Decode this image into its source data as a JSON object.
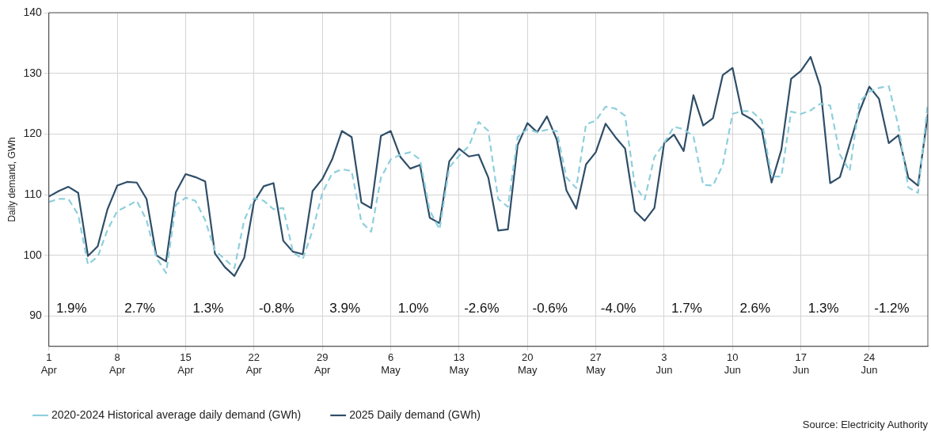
{
  "chart_data": {
    "type": "line",
    "ylabel": "Daily demand, GWh",
    "xlim": [
      "--04-01",
      "--06-30"
    ],
    "ylim": [
      85,
      140
    ],
    "yticks": [
      90,
      100,
      110,
      120,
      130,
      140
    ],
    "xticks": [
      {
        "value": "--04-01",
        "label": "1 Apr"
      },
      {
        "value": "--04-08",
        "label": "8 Apr"
      },
      {
        "value": "--04-15",
        "label": "15 Apr"
      },
      {
        "value": "--04-22",
        "label": "22 Apr"
      },
      {
        "value": "--04-29",
        "label": "29 Apr"
      },
      {
        "value": "--05-06",
        "label": "6 May"
      },
      {
        "value": "--05-13",
        "label": "13 May"
      },
      {
        "value": "--05-20",
        "label": "20 May"
      },
      {
        "value": "--05-27",
        "label": "27 May"
      },
      {
        "value": "--06-03",
        "label": "3 Jun"
      },
      {
        "value": "--06-10",
        "label": "10 Jun"
      },
      {
        "value": "--06-17",
        "label": "17 Jun"
      },
      {
        "value": "--06-24",
        "label": "24 Jun"
      }
    ],
    "grid": true,
    "legend": "bottom",
    "marker": "none",
    "x": [
      "--04-01",
      "--04-02",
      "--04-03",
      "--04-04",
      "--04-05",
      "--04-06",
      "--04-07",
      "--04-08",
      "--04-09",
      "--04-10",
      "--04-11",
      "--04-12",
      "--04-13",
      "--04-14",
      "--04-15",
      "--04-16",
      "--04-17",
      "--04-18",
      "--04-19",
      "--04-20",
      "--04-21",
      "--04-22",
      "--04-23",
      "--04-24",
      "--04-25",
      "--04-26",
      "--04-27",
      "--04-28",
      "--04-29",
      "--04-30",
      "--05-01",
      "--05-02",
      "--05-03",
      "--05-04",
      "--05-05",
      "--05-06",
      "--05-07",
      "--05-08",
      "--05-09",
      "--05-10",
      "--05-11",
      "--05-12",
      "--05-13",
      "--05-14",
      "--05-15",
      "--05-16",
      "--05-17",
      "--05-18",
      "--05-19",
      "--05-20",
      "--05-21",
      "--05-22",
      "--05-23",
      "--05-24",
      "--05-25",
      "--05-26",
      "--05-27",
      "--05-28",
      "--05-29",
      "--05-30",
      "--05-31",
      "--06-01",
      "--06-02",
      "--06-03",
      "--06-04",
      "--06-05",
      "--06-06",
      "--06-07",
      "--06-08",
      "--06-09",
      "--06-10",
      "--06-11",
      "--06-12",
      "--06-13",
      "--06-14",
      "--06-15",
      "--06-16",
      "--06-17",
      "--06-18",
      "--06-19",
      "--06-20",
      "--06-21",
      "--06-22",
      "--06-23",
      "--06-24",
      "--06-25",
      "--06-26",
      "--06-27",
      "--06-28",
      "--06-29",
      "--06-30"
    ],
    "series": [
      {
        "name": "2020-2024 Historical average daily demand (GWh)",
        "color": "#8ecfdc",
        "line_style": "dashed",
        "values": [
          108.8,
          109.3,
          109.3,
          106.7,
          98.5,
          99.8,
          104.2,
          107.3,
          108.1,
          109.0,
          105.8,
          99.6,
          97.1,
          108.3,
          109.5,
          109.0,
          105.8,
          100.8,
          99.4,
          97.9,
          105.8,
          109.4,
          109.0,
          107.6,
          107.8,
          100.5,
          99.4,
          104.1,
          110.3,
          113.5,
          114.2,
          113.9,
          105.5,
          103.9,
          112.8,
          115.8,
          116.6,
          117.0,
          115.8,
          107.4,
          104.3,
          114.5,
          116.4,
          118.0,
          122.0,
          120.5,
          109.3,
          108.0,
          119.5,
          120.8,
          120.3,
          120.7,
          120.5,
          112.8,
          111.1,
          121.6,
          122.2,
          124.5,
          124.2,
          123.0,
          111.5,
          109.2,
          116.2,
          118.5,
          121.2,
          120.8,
          119.6,
          111.6,
          111.5,
          114.9,
          123.3,
          123.8,
          123.7,
          122.2,
          113.0,
          113.0,
          123.7,
          123.3,
          123.9,
          125.0,
          124.7,
          116.6,
          113.9,
          125.3,
          127.0,
          127.6,
          127.9,
          121.2,
          111.2,
          110.3,
          125.1
        ]
      },
      {
        "name": "2025 Daily demand (GWh)",
        "color": "#2f4e68",
        "line_style": "solid",
        "values": [
          109.7,
          110.6,
          111.3,
          110.3,
          99.9,
          101.5,
          107.6,
          111.5,
          112.1,
          112.0,
          109.3,
          100.0,
          99.0,
          110.4,
          113.4,
          112.9,
          112.2,
          100.3,
          98.1,
          96.6,
          99.6,
          108.8,
          111.4,
          111.9,
          102.4,
          100.6,
          100.2,
          110.6,
          112.6,
          115.8,
          120.5,
          119.5,
          108.7,
          107.8,
          119.7,
          120.5,
          116.2,
          114.3,
          114.9,
          106.2,
          105.3,
          115.5,
          117.6,
          116.3,
          116.6,
          112.8,
          104.1,
          104.3,
          118.2,
          121.8,
          120.3,
          122.9,
          119.1,
          110.7,
          107.7,
          115.0,
          117.0,
          121.7,
          119.5,
          117.6,
          107.3,
          105.7,
          107.8,
          118.5,
          119.9,
          117.2,
          126.4,
          121.4,
          122.6,
          129.7,
          130.9,
          123.3,
          122.4,
          120.7,
          112.0,
          117.4,
          129.1,
          130.4,
          132.7,
          127.8,
          111.9,
          112.9,
          118.3,
          123.7,
          127.8,
          125.8,
          118.5,
          119.8,
          112.8,
          111.5,
          123.3
        ]
      }
    ],
    "annotations": [
      "1.9%",
      "2.7%",
      "1.3%",
      "-0.8%",
      "3.9%",
      "1.0%",
      "-2.6%",
      "-0.6%",
      "-4.0%",
      "1.7%",
      "2.6%",
      "1.3%",
      "-1.2%",
      "Source: Electricity Authority"
    ]
  }
}
